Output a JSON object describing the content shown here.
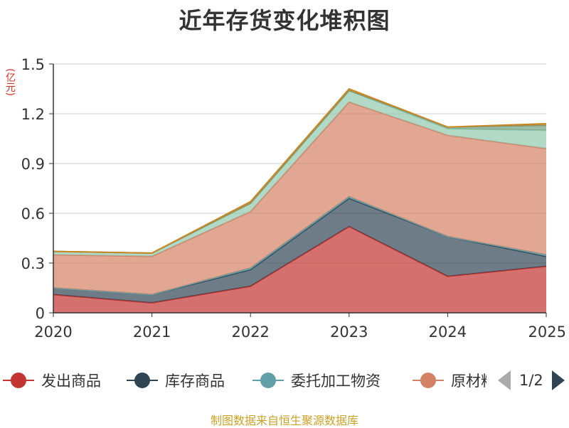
{
  "unit_label": "(亿元)",
  "source": "制图数据来自恒生聚源数据库",
  "legend_pager": {
    "page": "1/2"
  },
  "colors": {
    "grid": "#cccccc",
    "axis": "#333333",
    "text": "#333333",
    "unit": "#d93025",
    "source": "#c9a227"
  },
  "chart_data": {
    "type": "area",
    "stacked": true,
    "title": "近年存货变化堆积图",
    "xlabel": "",
    "ylabel": "(亿元)",
    "x": [
      "2020",
      "2021",
      "2022",
      "2023",
      "2024",
      "2025"
    ],
    "ylim": [
      0,
      1.5
    ],
    "yticks": [
      "0",
      "0.3",
      "0.6",
      "0.9",
      "1.2",
      "1.5"
    ],
    "grid": true,
    "legend_position": "bottom",
    "series": [
      {
        "name": "发出商品",
        "color": "#c23531",
        "values": [
          0.11,
          0.06,
          0.16,
          0.52,
          0.22,
          0.28
        ]
      },
      {
        "name": "库存商品",
        "color": "#2f4554",
        "values": [
          0.04,
          0.05,
          0.1,
          0.17,
          0.24,
          0.06
        ]
      },
      {
        "name": "委托加工物资",
        "color": "#61a0a8",
        "values": [
          0.0,
          0.0,
          0.01,
          0.01,
          0.0,
          0.01
        ]
      },
      {
        "name": "原材料",
        "color": "#d48265",
        "values": [
          0.2,
          0.23,
          0.34,
          0.57,
          0.61,
          0.64
        ]
      },
      {
        "color": "#91c7ae",
        "values": [
          0.02,
          0.02,
          0.05,
          0.07,
          0.04,
          0.11
        ]
      },
      {
        "color": "#749f83",
        "values": [
          0.0,
          0.0,
          0.0,
          0.0,
          0.01,
          0.03
        ]
      },
      {
        "color": "#ca8622",
        "values": [
          0.0,
          0.0,
          0.01,
          0.01,
          0.0,
          0.01
        ]
      }
    ],
    "legend_visible_count": 4
  }
}
